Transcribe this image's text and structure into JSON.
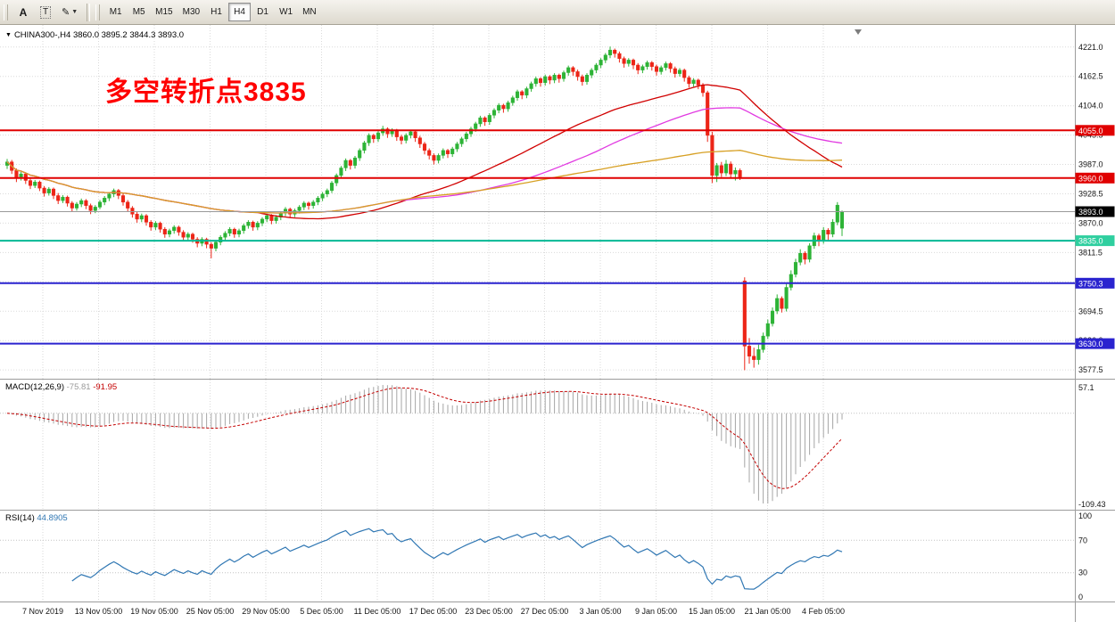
{
  "toolbar": {
    "left_tools": [
      {
        "name": "arrow-text-tool",
        "glyph": "A"
      },
      {
        "name": "text-label-tool",
        "glyph": "T"
      },
      {
        "name": "styles-palette-tool",
        "glyph": "✎"
      }
    ],
    "dropdown_arrow": "▼",
    "timeframes": [
      "M1",
      "M5",
      "M15",
      "M30",
      "H1",
      "H4",
      "D1",
      "W1",
      "MN"
    ],
    "active_timeframe": "H4"
  },
  "chart": {
    "symbol_info": {
      "expander": "▼",
      "symbol": "CHINA300-,H4",
      "ohlc": "3860.0 3895.2 3844.3 3893.0"
    },
    "annotation": {
      "text": "多空转折点3835",
      "color": "#ff0000"
    },
    "colors": {
      "bull": "#2db336",
      "bear": "#ec2517",
      "grid": "#dadada",
      "ma_fast": "#d10000",
      "ma_mid": "#e13ae1",
      "ma_slow": "#d7a024",
      "macd_hist": "#a6a6a6",
      "macd_signal": "#c40000",
      "rsi": "#3077b3"
    },
    "price_axis": {
      "min": 3560,
      "max": 4265,
      "ticks": [
        4221.0,
        4162.5,
        4104.0,
        4045.5,
        3987.0,
        3928.5,
        3870.0,
        3811.5,
        3753.0,
        3694.5,
        3636.0,
        3577.5
      ]
    },
    "hlines": [
      {
        "price": 4055.0,
        "label": "4055.0",
        "color": "#e00000"
      },
      {
        "price": 3960.0,
        "label": "3960.0",
        "color": "#e00000"
      },
      {
        "price": 3893.0,
        "label": "3893.0",
        "color": "#9a9a9a",
        "badge": "#000000",
        "current": true
      },
      {
        "price": 3835.0,
        "label": "3835.0",
        "color": "#00b894",
        "badge": "#2fcf9f"
      },
      {
        "price": 3750.3,
        "label": "3750.3",
        "color": "#2a23cf"
      },
      {
        "price": 3630.0,
        "label": "3630.0",
        "color": "#2a23cf"
      }
    ],
    "time_axis": [
      "7 Nov 2019",
      "13 Nov 05:00",
      "19 Nov 05:00",
      "25 Nov 05:00",
      "29 Nov 05:00",
      "5 Dec 05:00",
      "11 Dec 05:00",
      "17 Dec 05:00",
      "23 Dec 05:00",
      "27 Dec 05:00",
      "3 Jan 05:00",
      "9 Jan 05:00",
      "15 Jan 05:00",
      "21 Jan 05:00",
      "4 Feb 05:00"
    ]
  },
  "macd": {
    "label": "MACD(12,26,9)",
    "fast": 12,
    "slow": 26,
    "signal": 9,
    "values": [
      "-75.81",
      "-91.95"
    ],
    "axis_max": "57.1",
    "axis_min": "-109.43"
  },
  "rsi": {
    "label": "RSI(14)",
    "period": 14,
    "value": "44.8905",
    "levels": [
      "100",
      "70",
      "30",
      "0"
    ]
  },
  "chart_data": {
    "type": "candlestick",
    "symbol": "CHINA300-",
    "timeframe": "H4",
    "title": "CHINA300- H4 with MA lines, MACD(12,26,9), RSI(14)",
    "ylim": [
      3560,
      4265
    ],
    "moving_averages": [
      {
        "color_key": "ma_fast",
        "period": 55
      },
      {
        "color_key": "ma_mid",
        "period": 85
      },
      {
        "color_key": "ma_slow",
        "period": 140
      }
    ],
    "ohlc": [
      [
        3985,
        3998,
        3978,
        3992
      ],
      [
        3992,
        3996,
        3968,
        3975
      ],
      [
        3975,
        3979,
        3952,
        3960
      ],
      [
        3960,
        3972,
        3955,
        3968
      ],
      [
        3968,
        3971,
        3948,
        3955
      ],
      [
        3955,
        3960,
        3938,
        3945
      ],
      [
        3945,
        3956,
        3940,
        3952
      ],
      [
        3952,
        3955,
        3934,
        3940
      ],
      [
        3940,
        3944,
        3923,
        3930
      ],
      [
        3930,
        3942,
        3925,
        3938
      ],
      [
        3938,
        3941,
        3918,
        3925
      ],
      [
        3925,
        3930,
        3908,
        3915
      ],
      [
        3915,
        3926,
        3910,
        3922
      ],
      [
        3922,
        3925,
        3903,
        3910
      ],
      [
        3910,
        3914,
        3893,
        3900
      ],
      [
        3900,
        3912,
        3895,
        3908
      ],
      [
        3908,
        3919,
        3902,
        3915
      ],
      [
        3915,
        3918,
        3898,
        3905
      ],
      [
        3905,
        3909,
        3888,
        3895
      ],
      [
        3895,
        3906,
        3890,
        3902
      ],
      [
        3902,
        3916,
        3898,
        3912
      ],
      [
        3912,
        3924,
        3906,
        3920
      ],
      [
        3920,
        3932,
        3914,
        3928
      ],
      [
        3928,
        3939,
        3922,
        3935
      ],
      [
        3935,
        3938,
        3918,
        3925
      ],
      [
        3925,
        3929,
        3905,
        3912
      ],
      [
        3912,
        3916,
        3893,
        3900
      ],
      [
        3900,
        3904,
        3881,
        3888
      ],
      [
        3888,
        3892,
        3871,
        3878
      ],
      [
        3878,
        3889,
        3872,
        3885
      ],
      [
        3885,
        3888,
        3865,
        3872
      ],
      [
        3872,
        3876,
        3855,
        3862
      ],
      [
        3862,
        3874,
        3856,
        3870
      ],
      [
        3870,
        3873,
        3851,
        3858
      ],
      [
        3858,
        3862,
        3841,
        3848
      ],
      [
        3848,
        3859,
        3842,
        3855
      ],
      [
        3855,
        3866,
        3849,
        3862
      ],
      [
        3862,
        3865,
        3845,
        3852
      ],
      [
        3852,
        3856,
        3835,
        3842
      ],
      [
        3842,
        3852,
        3836,
        3848
      ],
      [
        3848,
        3851,
        3831,
        3838
      ],
      [
        3838,
        3842,
        3822,
        3830
      ],
      [
        3830,
        3842,
        3824,
        3838
      ],
      [
        3838,
        3841,
        3820,
        3828
      ],
      [
        3828,
        3832,
        3800,
        3820
      ],
      [
        3820,
        3836,
        3814,
        3832
      ],
      [
        3832,
        3846,
        3826,
        3842
      ],
      [
        3842,
        3854,
        3836,
        3850
      ],
      [
        3850,
        3862,
        3844,
        3858
      ],
      [
        3858,
        3861,
        3841,
        3848
      ],
      [
        3848,
        3859,
        3842,
        3855
      ],
      [
        3855,
        3869,
        3849,
        3865
      ],
      [
        3865,
        3876,
        3859,
        3872
      ],
      [
        3872,
        3875,
        3855,
        3862
      ],
      [
        3862,
        3874,
        3856,
        3870
      ],
      [
        3870,
        3882,
        3864,
        3878
      ],
      [
        3878,
        3889,
        3872,
        3885
      ],
      [
        3885,
        3888,
        3868,
        3875
      ],
      [
        3875,
        3886,
        3869,
        3882
      ],
      [
        3882,
        3894,
        3876,
        3890
      ],
      [
        3890,
        3902,
        3884,
        3898
      ],
      [
        3898,
        3901,
        3881,
        3888
      ],
      [
        3888,
        3899,
        3882,
        3895
      ],
      [
        3895,
        3906,
        3889,
        3902
      ],
      [
        3902,
        3914,
        3896,
        3910
      ],
      [
        3910,
        3913,
        3897,
        3905
      ],
      [
        3905,
        3916,
        3899,
        3912
      ],
      [
        3912,
        3924,
        3906,
        3920
      ],
      [
        3920,
        3932,
        3914,
        3928
      ],
      [
        3928,
        3939,
        3922,
        3935
      ],
      [
        3935,
        3954,
        3930,
        3950
      ],
      [
        3950,
        3969,
        3944,
        3965
      ],
      [
        3965,
        3984,
        3959,
        3980
      ],
      [
        3980,
        3999,
        3974,
        3995
      ],
      [
        3995,
        3998,
        3977,
        3985
      ],
      [
        3985,
        4004,
        3979,
        4000
      ],
      [
        4000,
        4019,
        3994,
        4015
      ],
      [
        4015,
        4034,
        4009,
        4030
      ],
      [
        4030,
        4049,
        4024,
        4045
      ],
      [
        4045,
        4048,
        4030,
        4038
      ],
      [
        4038,
        4054,
        4032,
        4050
      ],
      [
        4050,
        4064,
        4044,
        4058
      ],
      [
        4058,
        4061,
        4040,
        4048
      ],
      [
        4048,
        4059,
        4042,
        4055
      ],
      [
        4055,
        4058,
        4034,
        4042
      ],
      [
        4042,
        4046,
        4027,
        4035
      ],
      [
        4035,
        4049,
        4029,
        4045
      ],
      [
        4045,
        4056,
        4039,
        4052
      ],
      [
        4052,
        4055,
        4032,
        4040
      ],
      [
        4040,
        4044,
        4020,
        4028
      ],
      [
        4028,
        4032,
        4007,
        4015
      ],
      [
        4015,
        4019,
        3997,
        4005
      ],
      [
        4005,
        4009,
        3987,
        3995
      ],
      [
        3995,
        4009,
        3989,
        4005
      ],
      [
        4005,
        4019,
        3999,
        4015
      ],
      [
        4015,
        4018,
        4000,
        4008
      ],
      [
        4008,
        4022,
        4002,
        4018
      ],
      [
        4018,
        4032,
        4012,
        4028
      ],
      [
        4028,
        4042,
        4022,
        4038
      ],
      [
        4038,
        4052,
        4032,
        4048
      ],
      [
        4048,
        4062,
        4042,
        4058
      ],
      [
        4058,
        4072,
        4052,
        4068
      ],
      [
        4068,
        4084,
        4062,
        4080
      ],
      [
        4080,
        4083,
        4064,
        4072
      ],
      [
        4072,
        4089,
        4066,
        4085
      ],
      [
        4085,
        4099,
        4079,
        4095
      ],
      [
        4095,
        4109,
        4089,
        4105
      ],
      [
        4105,
        4108,
        4090,
        4098
      ],
      [
        4098,
        4114,
        4092,
        4110
      ],
      [
        4110,
        4124,
        4104,
        4120
      ],
      [
        4120,
        4136,
        4114,
        4132
      ],
      [
        4132,
        4135,
        4117,
        4125
      ],
      [
        4125,
        4142,
        4119,
        4138
      ],
      [
        4138,
        4152,
        4132,
        4148
      ],
      [
        4148,
        4162,
        4142,
        4158
      ],
      [
        4158,
        4161,
        4142,
        4150
      ],
      [
        4150,
        4166,
        4144,
        4162
      ],
      [
        4162,
        4165,
        4147,
        4155
      ],
      [
        4155,
        4169,
        4149,
        4165
      ],
      [
        4165,
        4168,
        4150,
        4158
      ],
      [
        4158,
        4174,
        4152,
        4170
      ],
      [
        4170,
        4184,
        4164,
        4180
      ],
      [
        4180,
        4183,
        4164,
        4172
      ],
      [
        4172,
        4176,
        4154,
        4162
      ],
      [
        4162,
        4166,
        4144,
        4152
      ],
      [
        4152,
        4169,
        4146,
        4165
      ],
      [
        4165,
        4179,
        4159,
        4175
      ],
      [
        4175,
        4189,
        4169,
        4185
      ],
      [
        4185,
        4199,
        4179,
        4195
      ],
      [
        4195,
        4209,
        4189,
        4205
      ],
      [
        4205,
        4222,
        4199,
        4215
      ],
      [
        4215,
        4218,
        4200,
        4208
      ],
      [
        4208,
        4212,
        4190,
        4198
      ],
      [
        4198,
        4202,
        4180,
        4188
      ],
      [
        4188,
        4199,
        4182,
        4195
      ],
      [
        4195,
        4198,
        4177,
        4185
      ],
      [
        4185,
        4189,
        4167,
        4175
      ],
      [
        4175,
        4186,
        4169,
        4182
      ],
      [
        4182,
        4194,
        4176,
        4190
      ],
      [
        4190,
        4193,
        4174,
        4182
      ],
      [
        4182,
        4186,
        4164,
        4172
      ],
      [
        4172,
        4184,
        4166,
        4180
      ],
      [
        4180,
        4192,
        4174,
        4188
      ],
      [
        4188,
        4191,
        4170,
        4178
      ],
      [
        4178,
        4182,
        4160,
        4168
      ],
      [
        4168,
        4179,
        4162,
        4175
      ],
      [
        4175,
        4178,
        4152,
        4160
      ],
      [
        4160,
        4164,
        4140,
        4148
      ],
      [
        4148,
        4159,
        4142,
        4155
      ],
      [
        4155,
        4158,
        4137,
        4145
      ],
      [
        4145,
        4149,
        4122,
        4130
      ],
      [
        4130,
        4134,
        4032,
        4045
      ],
      [
        4045,
        4052,
        3950,
        3965
      ],
      [
        3965,
        3990,
        3952,
        3985
      ],
      [
        3985,
        3992,
        3962,
        3970
      ],
      [
        3970,
        3996,
        3964,
        3988
      ],
      [
        3988,
        3993,
        3960,
        3968
      ],
      [
        3968,
        3981,
        3955,
        3975
      ],
      [
        3975,
        3979,
        3956,
        3962
      ],
      [
        3755,
        3762,
        3577,
        3625
      ],
      [
        3625,
        3641,
        3590,
        3605
      ],
      [
        3605,
        3622,
        3582,
        3598
      ],
      [
        3598,
        3628,
        3588,
        3618
      ],
      [
        3618,
        3652,
        3612,
        3645
      ],
      [
        3645,
        3678,
        3639,
        3670
      ],
      [
        3670,
        3702,
        3664,
        3695
      ],
      [
        3695,
        3728,
        3689,
        3720
      ],
      [
        3720,
        3724,
        3692,
        3700
      ],
      [
        3700,
        3749,
        3694,
        3742
      ],
      [
        3742,
        3776,
        3736,
        3768
      ],
      [
        3768,
        3799,
        3762,
        3792
      ],
      [
        3792,
        3818,
        3786,
        3810
      ],
      [
        3810,
        3814,
        3788,
        3798
      ],
      [
        3798,
        3830,
        3792,
        3825
      ],
      [
        3825,
        3851,
        3819,
        3845
      ],
      [
        3845,
        3849,
        3824,
        3835
      ],
      [
        3835,
        3862,
        3829,
        3856
      ],
      [
        3856,
        3860,
        3836,
        3848
      ],
      [
        3848,
        3878,
        3842,
        3872
      ],
      [
        3872,
        3912,
        3866,
        3906
      ],
      [
        3860,
        3895.2,
        3844.3,
        3893.0
      ]
    ]
  }
}
